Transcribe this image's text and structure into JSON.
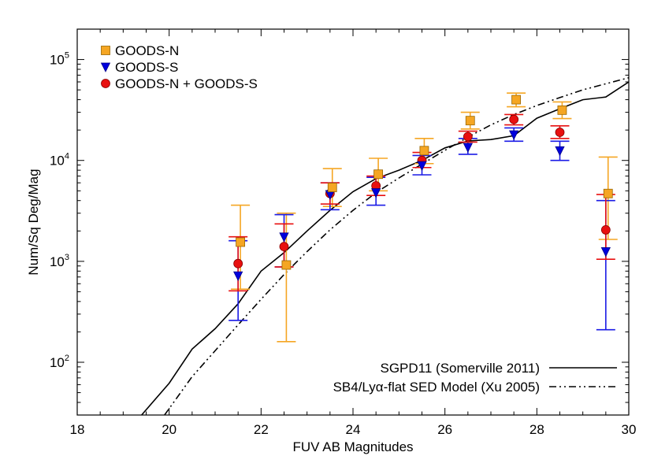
{
  "chart_data": {
    "type": "scatter",
    "title": "",
    "xlabel": "FUV AB Magnitudes",
    "ylabel": "Num/Sq Deg/Mag",
    "xlim": [
      18,
      30
    ],
    "ylim": [
      30,
      200000
    ],
    "yscale": "log",
    "x_ticks": [
      18,
      20,
      22,
      24,
      26,
      28,
      30
    ],
    "y_ticks": [
      {
        "value": 100,
        "base": "10",
        "exp": "2"
      },
      {
        "value": 1000,
        "base": "10",
        "exp": "3"
      },
      {
        "value": 10000,
        "base": "10",
        "exp": "4"
      },
      {
        "value": 100000,
        "base": "10",
        "exp": "5"
      }
    ],
    "legend_position": "top-left",
    "series": [
      {
        "name": "GOODS-N",
        "marker": "square",
        "color": "#F5A623",
        "edge": "#996600",
        "errcolor": "#F5A623",
        "x_offset": 0.05,
        "points": [
          {
            "x": 21.5,
            "y": 1550,
            "lo": 530,
            "hi": 3600
          },
          {
            "x": 22.5,
            "y": 920,
            "lo": 160,
            "hi": 3000
          },
          {
            "x": 23.5,
            "y": 5400,
            "lo": 3500,
            "hi": 8300
          },
          {
            "x": 24.5,
            "y": 7300,
            "lo": 5000,
            "hi": 10500
          },
          {
            "x": 25.5,
            "y": 12500,
            "lo": 9300,
            "hi": 16500
          },
          {
            "x": 26.5,
            "y": 24800,
            "lo": 20500,
            "hi": 30000
          },
          {
            "x": 27.5,
            "y": 40000,
            "lo": 34000,
            "hi": 46500
          },
          {
            "x": 28.5,
            "y": 31500,
            "lo": 26000,
            "hi": 38000
          },
          {
            "x": 29.5,
            "y": 4700,
            "lo": 1650,
            "hi": 10800
          }
        ]
      },
      {
        "name": "GOODS-S",
        "marker": "triangle-down",
        "color": "#0000DD",
        "edge": "#000088",
        "errcolor": "#1A1AE6",
        "x_offset": 0.0,
        "points": [
          {
            "x": 21.5,
            "y": 720,
            "lo": 260,
            "hi": 1600
          },
          {
            "x": 22.5,
            "y": 1750,
            "lo": 880,
            "hi": 2900
          },
          {
            "x": 23.5,
            "y": 4600,
            "lo": 3250,
            "hi": 6000
          },
          {
            "x": 24.5,
            "y": 4800,
            "lo": 3600,
            "hi": 6800
          },
          {
            "x": 25.5,
            "y": 8900,
            "lo": 7200,
            "hi": 11200
          },
          {
            "x": 26.5,
            "y": 13500,
            "lo": 11500,
            "hi": 16500
          },
          {
            "x": 27.5,
            "y": 18000,
            "lo": 15500,
            "hi": 21000
          },
          {
            "x": 28.5,
            "y": 12500,
            "lo": 10000,
            "hi": 15500
          },
          {
            "x": 29.5,
            "y": 1250,
            "lo": 210,
            "hi": 4000
          }
        ]
      },
      {
        "name": "GOODS-N + GOODS-S",
        "marker": "circle",
        "color": "#E81010",
        "edge": "#880000",
        "errcolor": "#E81010",
        "x_offset": 0.0,
        "points": [
          {
            "x": 21.5,
            "y": 950,
            "lo": 510,
            "hi": 1750
          },
          {
            "x": 22.5,
            "y": 1400,
            "lo": 880,
            "hi": 2350
          },
          {
            "x": 23.5,
            "y": 4700,
            "lo": 3700,
            "hi": 6000
          },
          {
            "x": 24.5,
            "y": 5600,
            "lo": 4500,
            "hi": 7000
          },
          {
            "x": 25.5,
            "y": 10000,
            "lo": 8500,
            "hi": 12000
          },
          {
            "x": 26.5,
            "y": 17200,
            "lo": 15200,
            "hi": 19500
          },
          {
            "x": 27.5,
            "y": 25500,
            "lo": 22500,
            "hi": 28500
          },
          {
            "x": 28.5,
            "y": 19000,
            "lo": 16500,
            "hi": 22000
          },
          {
            "x": 29.5,
            "y": 2050,
            "lo": 1050,
            "hi": 4600
          }
        ]
      }
    ],
    "model_lines": [
      {
        "name": "SGPD11 (Somerville 2011)",
        "style": "solid",
        "x": [
          19.4,
          20.0,
          20.5,
          21.0,
          21.5,
          22.0,
          22.5,
          23.0,
          23.5,
          24.0,
          24.5,
          25.0,
          25.5,
          26.0,
          26.5,
          27.0,
          27.5,
          28.0,
          28.5,
          29.0,
          29.5,
          30.0
        ],
        "y": [
          30,
          62,
          135,
          215,
          380,
          800,
          1220,
          2000,
          3200,
          4900,
          6600,
          8000,
          10000,
          13300,
          15600,
          16100,
          17600,
          26200,
          32500,
          40000,
          42500,
          60000
        ]
      },
      {
        "name": "SB4/Lyα-flat SED Model (Xu 2005)",
        "style": "dashdotdot",
        "x": [
          19.9,
          20.5,
          21.0,
          21.5,
          22.0,
          22.5,
          23.0,
          23.5,
          24.0,
          24.5,
          25.0,
          25.5,
          26.0,
          26.5,
          27.0,
          27.5,
          28.0,
          28.5,
          29.0,
          29.5,
          30.0
        ],
        "y": [
          30,
          72,
          130,
          235,
          420,
          740,
          1250,
          2050,
          3200,
          4800,
          6700,
          9200,
          12600,
          17000,
          22500,
          28500,
          35000,
          42000,
          50000,
          57500,
          66000
        ]
      }
    ]
  }
}
